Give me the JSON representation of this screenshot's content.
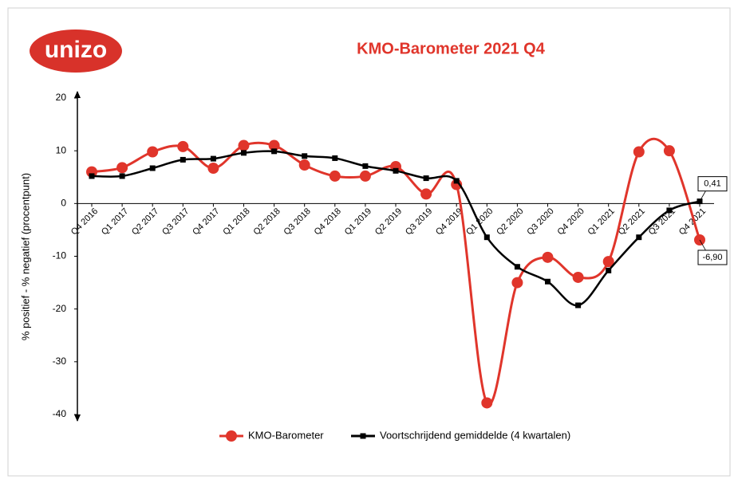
{
  "logo": "unizo",
  "chart_data": {
    "type": "line",
    "title": "KMO-Barometer 2021 Q4",
    "y_label": "% positief - % negatief (procentpunt)",
    "categories": [
      "Q4 2016",
      "Q1 2017",
      "Q2 2017",
      "Q3 2017",
      "Q4 2017",
      "Q1 2018",
      "Q2 2018",
      "Q3 2018",
      "Q4 2018",
      "Q1 2019",
      "Q2 2019",
      "Q3 2019",
      "Q4 2019",
      "Q1 2020",
      "Q2 2020",
      "Q3 2020",
      "Q4 2020",
      "Q1 2021",
      "Q2 2021",
      "Q3 2021",
      "Q4 2021"
    ],
    "series": [
      {
        "name": "KMO-Barometer",
        "color": "#e0352b",
        "marker": "circle",
        "values": [
          6,
          6.8,
          9.8,
          10.8,
          6.7,
          11,
          11,
          7.3,
          5.2,
          5.2,
          7,
          1.8,
          3.6,
          -37.8,
          -15,
          -10.2,
          -14,
          -11,
          9.8,
          10,
          -6.9
        ],
        "value_labels": [
          null,
          null,
          null,
          null,
          null,
          null,
          null,
          null,
          null,
          null,
          null,
          null,
          null,
          null,
          null,
          null,
          null,
          null,
          null,
          null,
          "-6,90"
        ]
      },
      {
        "name": "Voortschrijdend gemiddelde (4 kwartalen)",
        "color": "#000000",
        "marker": "square",
        "values": [
          5.2,
          5.2,
          6.7,
          8.3,
          8.5,
          9.6,
          9.9,
          9,
          8.6,
          7.1,
          6.2,
          4.8,
          4.3,
          -6.4,
          -12,
          -14.8,
          -19.3,
          -12.7,
          -6.4,
          -1.3,
          0.41
        ],
        "value_labels": [
          null,
          null,
          null,
          null,
          null,
          null,
          null,
          null,
          null,
          null,
          null,
          null,
          null,
          null,
          null,
          null,
          null,
          null,
          null,
          null,
          "0,41"
        ]
      }
    ],
    "ylim": [
      -40,
      20
    ],
    "yticks": [
      -40,
      -30,
      -20,
      -10,
      0,
      10,
      20
    ],
    "smooth": true
  }
}
